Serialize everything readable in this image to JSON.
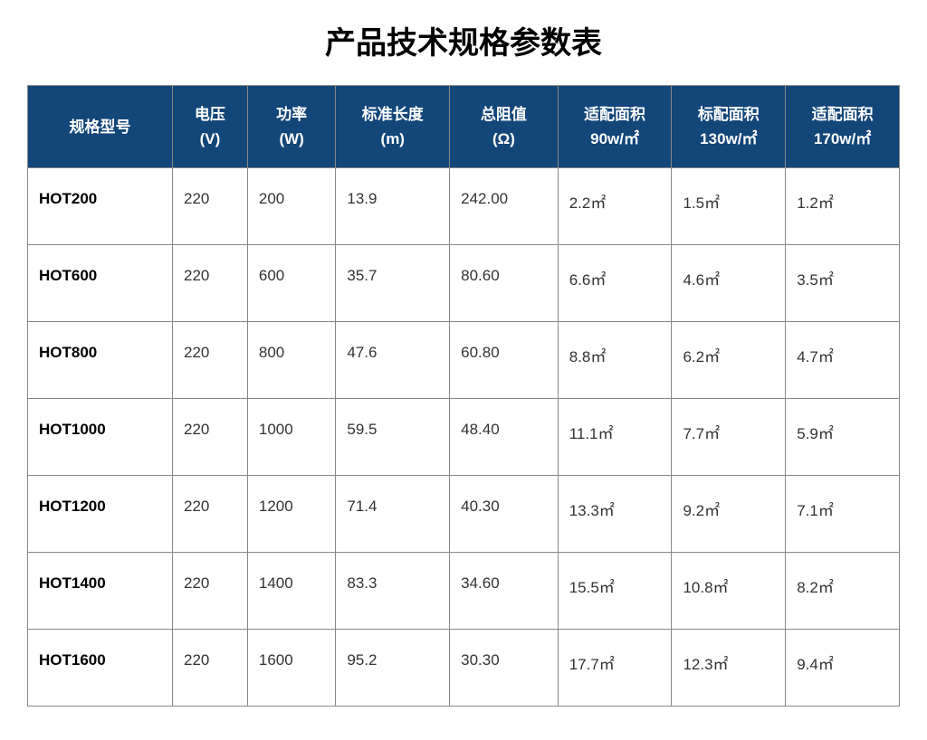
{
  "title": "产品技术规格参数表",
  "table": {
    "header_bg": "#134679",
    "header_color": "#ffffff",
    "border_color": "#888888",
    "columns": [
      {
        "line1": "规格型号",
        "line2": ""
      },
      {
        "line1": "电压",
        "line2": "(V)"
      },
      {
        "line1": "功率",
        "line2": "(W)"
      },
      {
        "line1": "标准长度",
        "line2": "(m)"
      },
      {
        "line1": "总阻值",
        "line2": "(Ω)"
      },
      {
        "line1": "适配面积",
        "line2": "90w/㎡"
      },
      {
        "line1": "标配面积",
        "line2": "130w/㎡"
      },
      {
        "line1": "适配面积",
        "line2": "170w/㎡"
      }
    ],
    "rows": [
      [
        "HOT200",
        "220",
        "200",
        "13.9",
        "242.00",
        "2.2㎡",
        "1.5㎡",
        "1.2㎡"
      ],
      [
        "HOT600",
        "220",
        "600",
        "35.7",
        "80.60",
        "6.6㎡",
        "4.6㎡",
        "3.5㎡"
      ],
      [
        "HOT800",
        "220",
        "800",
        "47.6",
        "60.80",
        "8.8㎡",
        "6.2㎡",
        "4.7㎡"
      ],
      [
        "HOT1000",
        "220",
        "1000",
        "59.5",
        "48.40",
        "11.1㎡",
        "7.7㎡",
        "5.9㎡"
      ],
      [
        "HOT1200",
        "220",
        "1200",
        "71.4",
        "40.30",
        "13.3㎡",
        "9.2㎡",
        "7.1㎡"
      ],
      [
        "HOT1400",
        "220",
        "1400",
        "83.3",
        "34.60",
        "15.5㎡",
        "10.8㎡",
        "8.2㎡"
      ],
      [
        "HOT1600",
        "220",
        "1600",
        "95.2",
        "30.30",
        "17.7㎡",
        "12.3㎡",
        "9.4㎡"
      ]
    ]
  }
}
